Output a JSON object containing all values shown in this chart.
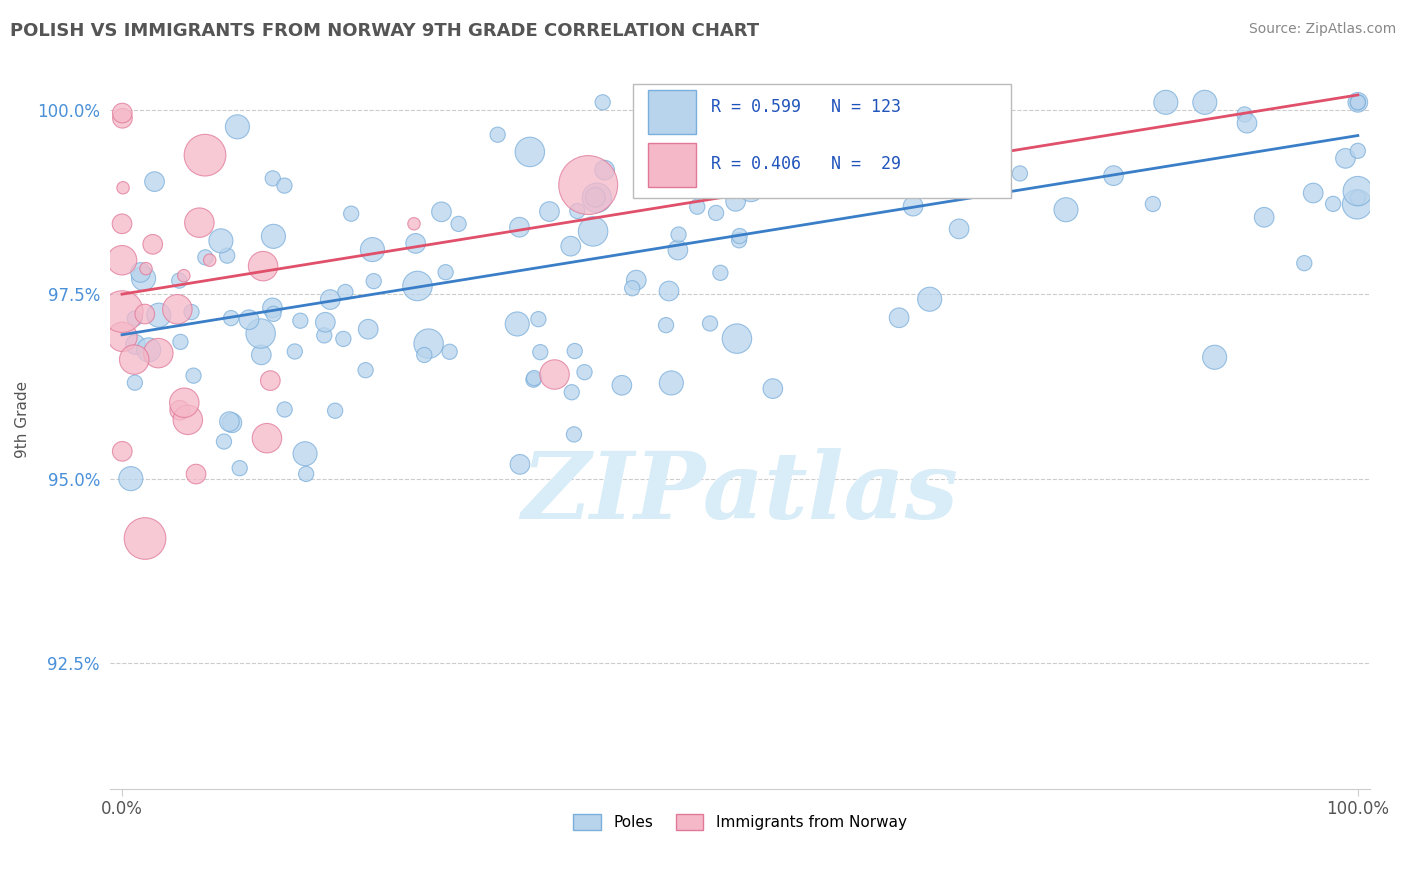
{
  "title": "POLISH VS IMMIGRANTS FROM NORWAY 9TH GRADE CORRELATION CHART",
  "source": "Source: ZipAtlas.com",
  "ylabel": "9th Grade",
  "xmin": 0.0,
  "xmax": 1.0,
  "ymin": 0.908,
  "ymax": 1.008,
  "yticks": [
    0.925,
    0.95,
    0.975,
    1.0
  ],
  "ytick_labels": [
    "92.5%",
    "95.0%",
    "97.5%",
    "100.0%"
  ],
  "xlabel_ticks": [
    0.0,
    1.0
  ],
  "xlabel_labels": [
    "0.0%",
    "100.0%"
  ],
  "blue_R": 0.599,
  "blue_N": 123,
  "pink_R": 0.406,
  "pink_N": 29,
  "blue_scatter_color": "#b8d4ec",
  "blue_edge_color": "#7aaedb",
  "pink_scatter_color": "#f5b8c8",
  "pink_edge_color": "#e07898",
  "blue_line_color": "#3a7ec8",
  "pink_line_color": "#e0506a",
  "blue_line_x0": 0.0,
  "blue_line_x1": 1.0,
  "blue_line_y0": 0.9695,
  "blue_line_y1": 0.9965,
  "pink_line_x0": 0.0,
  "pink_line_x1": 1.0,
  "pink_line_y0": 0.975,
  "pink_line_y1": 1.002,
  "watermark_text": "ZIPatlas",
  "watermark_color": "#d8edf8",
  "grid_color": "#cccccc",
  "title_color": "#555555",
  "ytick_color": "#4a90d9",
  "legend_R_N_color": "#2255bb",
  "background": "#ffffff"
}
